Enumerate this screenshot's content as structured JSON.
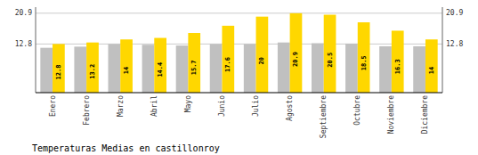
{
  "chart_data": {
    "type": "bar",
    "title": "Temperaturas Medias en castillonroy",
    "categories": [
      "Enero",
      "Febrero",
      "Marzo",
      "Abril",
      "Mayo",
      "Junio",
      "Julio",
      "Agosto",
      "Septiembre",
      "Octubre",
      "Noviembre",
      "Diciembre"
    ],
    "series": [
      {
        "color": "#C0C0C0",
        "values": [
          11.8,
          12.1,
          12.8,
          12.6,
          12.4,
          12.8,
          12.8,
          13.2,
          13.0,
          12.9,
          12.2,
          12.2
        ]
      },
      {
        "color": "#FFD700",
        "data_labels": true,
        "values": [
          12.8,
          13.2,
          14.0,
          14.4,
          15.7,
          17.6,
          20.0,
          20.9,
          20.5,
          18.5,
          16.3,
          14.0
        ]
      }
    ],
    "ylim": [
      0,
      22.5
    ],
    "yticks": [
      12.8,
      20.9
    ],
    "y2lim": [
      0,
      22.5
    ],
    "y2ticks": [
      12.8,
      20.9
    ],
    "grid": true
  }
}
